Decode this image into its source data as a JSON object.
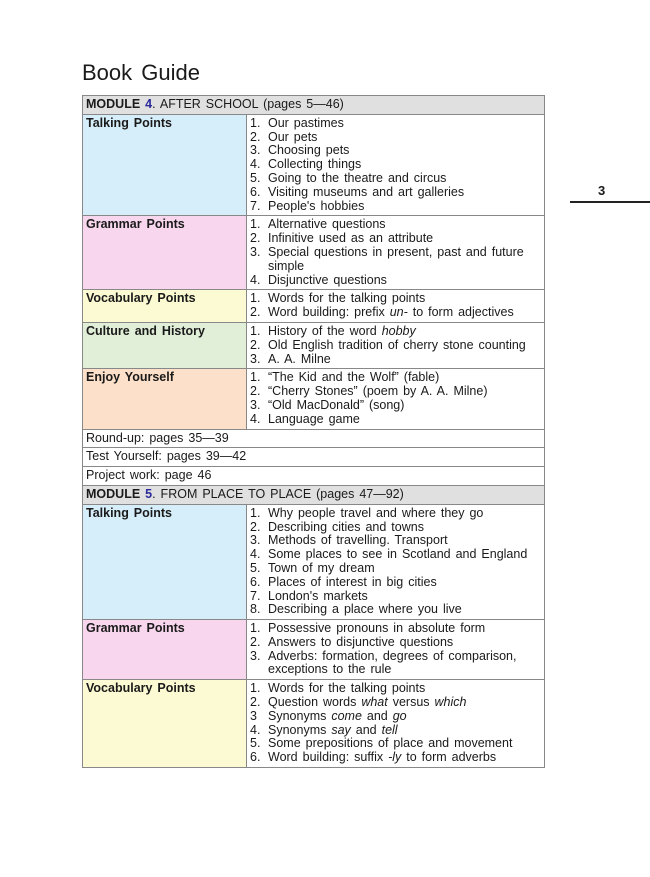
{
  "header": {
    "title": "Book Guide",
    "page_number": "3"
  },
  "modules": [
    {
      "label": "MODULE",
      "number": "4",
      "title": ". AFTER SCHOOL (pages 5—46)",
      "sections": [
        {
          "name": "Talking Points",
          "color": "#d6eef9",
          "items": [
            {
              "num": "1.",
              "text": [
                "Our pastimes"
              ]
            },
            {
              "num": "2.",
              "text": [
                "Our pets"
              ]
            },
            {
              "num": "3.",
              "text": [
                "Choosing pets"
              ]
            },
            {
              "num": "4.",
              "text": [
                "Collecting things"
              ]
            },
            {
              "num": "5.",
              "text": [
                "Going to the theatre and circus"
              ]
            },
            {
              "num": "6.",
              "text": [
                "Visiting museums and art galleries"
              ]
            },
            {
              "num": "7.",
              "text": [
                "People's hobbies"
              ]
            }
          ]
        },
        {
          "name": "Grammar Points",
          "color": "#f8d6ee",
          "items": [
            {
              "num": "1.",
              "text": [
                "Alternative questions"
              ]
            },
            {
              "num": "2.",
              "text": [
                "Infinitive used as an attribute"
              ]
            },
            {
              "num": "3.",
              "text": [
                "Special questions in present, past and future simple"
              ]
            },
            {
              "num": "4.",
              "text": [
                "Disjunctive questions"
              ]
            }
          ]
        },
        {
          "name": "Vocabulary Points",
          "color": "#fcfad2",
          "items": [
            {
              "num": "1.",
              "text": [
                "Words for the talking points"
              ]
            },
            {
              "num": "2.",
              "text": [
                "Word building: prefix ",
                {
                  "text": "un-",
                  "italic": true
                },
                " to form adjectives"
              ]
            }
          ]
        },
        {
          "name": "Culture and History",
          "color": "#e2efd8",
          "items": [
            {
              "num": "1.",
              "text": [
                "History of the word ",
                {
                  "text": "hobby",
                  "italic": true
                }
              ]
            },
            {
              "num": "2.",
              "text": [
                "Old English tradition of cherry stone counting"
              ]
            },
            {
              "num": "3.",
              "text": [
                "A. A. Milne"
              ]
            }
          ]
        },
        {
          "name": "Enjoy Yourself",
          "color": "#fde0c9",
          "items": [
            {
              "num": "1.",
              "text": [
                "“The Kid and the Wolf” (fable)"
              ]
            },
            {
              "num": "2.",
              "text": [
                "“Cherry Stones” (poem by A. A. Milne)"
              ]
            },
            {
              "num": "3.",
              "text": [
                "“Old MacDonald” (song)"
              ]
            },
            {
              "num": "4.",
              "text": [
                "Language game"
              ]
            }
          ]
        }
      ],
      "notes": [
        "Round-up: pages 35—39",
        "Test Yourself: pages 39—42",
        "Project work: page 46"
      ]
    },
    {
      "label": "MODULE",
      "number": "5",
      "title": ". FROM PLACE TO PLACE (pages 47—92)",
      "sections": [
        {
          "name": "Talking Points",
          "color": "#d6eef9",
          "items": [
            {
              "num": "1.",
              "text": [
                "Why people travel and where they go"
              ]
            },
            {
              "num": "2.",
              "text": [
                "Describing cities and towns"
              ]
            },
            {
              "num": "3.",
              "text": [
                "Methods of travelling. Transport"
              ]
            },
            {
              "num": "4.",
              "text": [
                "Some places to see in Scotland and England"
              ]
            },
            {
              "num": "5.",
              "text": [
                "Town of my dream"
              ]
            },
            {
              "num": "6.",
              "text": [
                "Places of interest in big cities"
              ]
            },
            {
              "num": "7.",
              "text": [
                "London's markets"
              ]
            },
            {
              "num": "8.",
              "text": [
                "Describing a place where you live"
              ]
            }
          ]
        },
        {
          "name": "Grammar Points",
          "color": "#f8d6ee",
          "items": [
            {
              "num": "1.",
              "text": [
                "Possessive pronouns in absolute form"
              ]
            },
            {
              "num": "2.",
              "text": [
                "Answers to disjunctive questions"
              ]
            },
            {
              "num": "3.",
              "text": [
                "Adverbs: formation, degrees of comparison, exceptions to the rule"
              ]
            }
          ]
        },
        {
          "name": "Vocabulary Points",
          "color": "#fcfad2",
          "items": [
            {
              "num": "1.",
              "text": [
                "Words for the talking points"
              ]
            },
            {
              "num": "2.",
              "text": [
                "Question words ",
                {
                  "text": "what",
                  "italic": true
                },
                " versus ",
                {
                  "text": "which",
                  "italic": true
                }
              ]
            },
            {
              "num": "3",
              "text": [
                "Synonyms ",
                {
                  "text": "come",
                  "italic": true
                },
                " and ",
                {
                  "text": "go",
                  "italic": true
                }
              ]
            },
            {
              "num": "4.",
              "text": [
                "Synonyms ",
                {
                  "text": "say",
                  "italic": true
                },
                " and ",
                {
                  "text": "tell",
                  "italic": true
                }
              ]
            },
            {
              "num": "5.",
              "text": [
                "Some prepositions of place and movement"
              ]
            },
            {
              "num": "6.",
              "text": [
                "Word building: suffix ",
                {
                  "text": "-ly",
                  "italic": true
                },
                " to form adverbs"
              ]
            }
          ]
        }
      ]
    }
  ]
}
